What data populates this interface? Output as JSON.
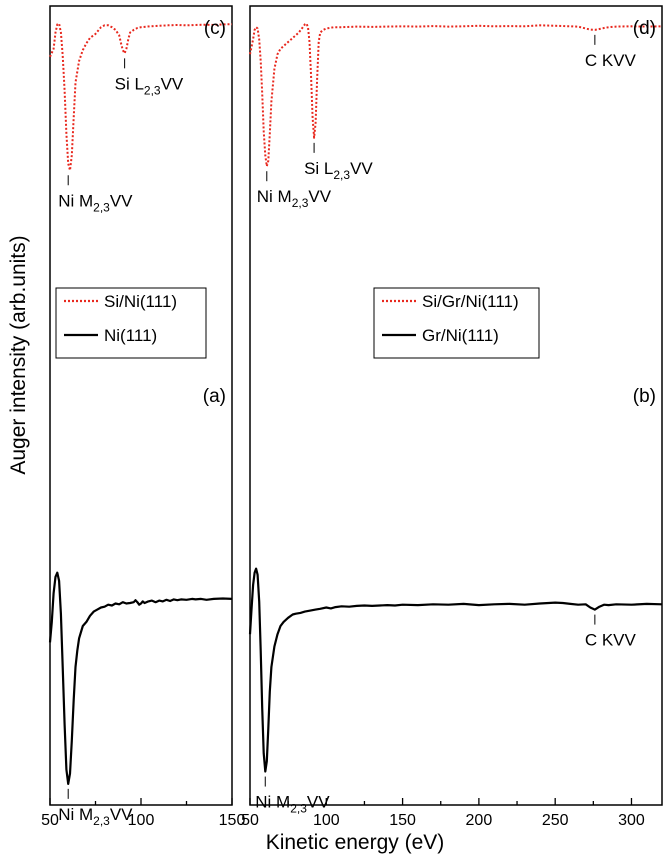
{
  "figure": {
    "xlabel": "Kinetic energy (eV)",
    "ylabel": "Auger intensity (arb.units)"
  },
  "chart_data": [
    {
      "type": "line",
      "panels": [
        "(c)",
        "(a)"
      ],
      "xlim": [
        50,
        150
      ],
      "x_ticks": [
        50,
        100,
        150
      ],
      "x_tick_labels": [
        "50",
        "100",
        "150"
      ],
      "y_ticks": "none",
      "legend": {
        "placement": "center-left"
      },
      "series": [
        {
          "name": "Si/Ni(111)",
          "panel": "(c)",
          "color": "#e8281e",
          "style": "dotted",
          "x": [
            50,
            52,
            53,
            54,
            55,
            56,
            57,
            58,
            59,
            60,
            61,
            62,
            63,
            64,
            66,
            68,
            70,
            72,
            75,
            78,
            80,
            82,
            84,
            86,
            88,
            89,
            90,
            91,
            92,
            93,
            94,
            96,
            98,
            100,
            105,
            110,
            115,
            120,
            125,
            130,
            135,
            140,
            145,
            150
          ],
          "y": [
            0.845,
            0.875,
            0.935,
            0.965,
            0.968,
            0.935,
            0.85,
            0.72,
            0.56,
            0.45,
            0.425,
            0.48,
            0.62,
            0.75,
            0.83,
            0.87,
            0.895,
            0.915,
            0.93,
            0.955,
            0.962,
            0.962,
            0.955,
            0.945,
            0.925,
            0.895,
            0.87,
            0.858,
            0.875,
            0.91,
            0.935,
            0.945,
            0.952,
            0.955,
            0.958,
            0.96,
            0.962,
            0.963,
            0.962,
            0.963,
            0.964,
            0.963,
            0.965,
            0.966
          ]
        },
        {
          "name": "Ni(111)",
          "panel": "(a)",
          "color": "#000000",
          "style": "solid",
          "x": [
            50,
            51,
            52,
            53,
            54,
            55,
            56,
            57,
            58,
            59,
            60,
            61,
            62,
            63,
            64,
            65,
            66,
            68,
            70,
            72,
            74,
            76,
            78,
            80,
            82,
            84,
            86,
            88,
            90,
            92,
            94,
            96,
            97,
            98,
            99,
            100,
            101,
            102,
            104,
            106,
            108,
            110,
            112,
            114,
            116,
            118,
            120,
            122,
            125,
            128,
            130,
            133,
            136,
            140,
            145,
            150
          ],
          "y": [
            0.36,
            0.41,
            0.48,
            0.52,
            0.53,
            0.51,
            0.43,
            0.3,
            0.16,
            0.05,
            0.015,
            0.04,
            0.12,
            0.22,
            0.3,
            0.34,
            0.37,
            0.4,
            0.41,
            0.425,
            0.435,
            0.44,
            0.445,
            0.447,
            0.452,
            0.45,
            0.455,
            0.453,
            0.458,
            0.455,
            0.456,
            0.458,
            0.463,
            0.458,
            0.452,
            0.455,
            0.46,
            0.456,
            0.46,
            0.462,
            0.458,
            0.462,
            0.46,
            0.464,
            0.461,
            0.465,
            0.463,
            0.465,
            0.464,
            0.466,
            0.465,
            0.466,
            0.464,
            0.466,
            0.467,
            0.466
          ]
        }
      ],
      "annotations": [
        {
          "panel": "(c)",
          "base": "Si L",
          "sub": "2,3",
          "suffix": "VV",
          "x": 91,
          "y": 0.858,
          "pos": "below"
        },
        {
          "panel": "(c)",
          "base": "Ni M",
          "sub": "2,3",
          "suffix": "VV",
          "x": 60,
          "y": 0.425,
          "pos": "below"
        },
        {
          "panel": "(a)",
          "base": "Ni M",
          "sub": "2,3",
          "suffix": "VV",
          "x": 60,
          "y": 0.015,
          "pos": "below"
        }
      ]
    },
    {
      "type": "line",
      "panels": [
        "(d)",
        "(b)"
      ],
      "xlim": [
        50,
        320
      ],
      "x_ticks": [
        50,
        100,
        150,
        200,
        250,
        300
      ],
      "x_tick_labels": [
        "50",
        "100",
        "150",
        "200",
        "250",
        "300"
      ],
      "y_ticks": "none",
      "legend": {
        "placement": "center-left"
      },
      "series": [
        {
          "name": "Si/Gr/Ni(111)",
          "panel": "(d)",
          "color": "#e8281e",
          "style": "dotted",
          "x": [
            50,
            52,
            53,
            54,
            55,
            56,
            57,
            58,
            59,
            60,
            61,
            62,
            63,
            64,
            66,
            68,
            70,
            72,
            74,
            76,
            78,
            80,
            82,
            84,
            86,
            87,
            88,
            89,
            90,
            91,
            92,
            93,
            94,
            95,
            96,
            98,
            100,
            105,
            110,
            120,
            130,
            140,
            150,
            160,
            170,
            180,
            190,
            200,
            210,
            220,
            230,
            240,
            250,
            260,
            265,
            270,
            273,
            276,
            279,
            282,
            285,
            290,
            300,
            310,
            320
          ],
          "y": [
            0.855,
            0.91,
            0.945,
            0.955,
            0.95,
            0.91,
            0.83,
            0.71,
            0.57,
            0.48,
            0.44,
            0.46,
            0.56,
            0.68,
            0.8,
            0.855,
            0.875,
            0.885,
            0.895,
            0.905,
            0.915,
            0.925,
            0.935,
            0.95,
            0.965,
            0.968,
            0.955,
            0.9,
            0.78,
            0.62,
            0.545,
            0.6,
            0.76,
            0.9,
            0.935,
            0.945,
            0.95,
            0.955,
            0.955,
            0.957,
            0.956,
            0.957,
            0.958,
            0.957,
            0.959,
            0.957,
            0.958,
            0.96,
            0.958,
            0.959,
            0.958,
            0.962,
            0.96,
            0.958,
            0.957,
            0.95,
            0.946,
            0.945,
            0.948,
            0.952,
            0.955,
            0.957,
            0.958,
            0.957,
            0.958
          ]
        },
        {
          "name": "Gr/Ni(111)",
          "panel": "(b)",
          "color": "#000000",
          "style": "solid",
          "x": [
            50,
            51,
            52,
            53,
            54,
            55,
            56,
            57,
            58,
            59,
            60,
            61,
            62,
            63,
            64,
            66,
            68,
            70,
            72,
            75,
            78,
            80,
            83,
            86,
            90,
            93,
            96,
            100,
            103,
            106,
            110,
            115,
            120,
            125,
            130,
            135,
            140,
            145,
            150,
            160,
            170,
            180,
            190,
            200,
            210,
            220,
            230,
            240,
            250,
            255,
            260,
            265,
            270,
            273,
            276,
            279,
            282,
            285,
            290,
            300,
            310,
            320
          ],
          "y": [
            0.38,
            0.44,
            0.5,
            0.53,
            0.54,
            0.525,
            0.46,
            0.34,
            0.2,
            0.09,
            0.045,
            0.07,
            0.15,
            0.24,
            0.3,
            0.35,
            0.38,
            0.4,
            0.41,
            0.42,
            0.428,
            0.43,
            0.432,
            0.435,
            0.438,
            0.44,
            0.442,
            0.445,
            0.443,
            0.446,
            0.448,
            0.447,
            0.449,
            0.45,
            0.449,
            0.45,
            0.451,
            0.45,
            0.452,
            0.451,
            0.453,
            0.452,
            0.454,
            0.451,
            0.453,
            0.454,
            0.452,
            0.455,
            0.457,
            0.456,
            0.454,
            0.452,
            0.453,
            0.445,
            0.44,
            0.447,
            0.452,
            0.451,
            0.453,
            0.452,
            0.454,
            0.453
          ]
        }
      ],
      "annotations": [
        {
          "panel": "(d)",
          "base": "Si L",
          "sub": "2,3",
          "suffix": "VV",
          "x": 92,
          "y": 0.545,
          "pos": "below"
        },
        {
          "panel": "(d)",
          "base": "Ni M",
          "sub": "2,3",
          "suffix": "VV",
          "x": 61,
          "y": 0.44,
          "pos": "below"
        },
        {
          "panel": "(d)",
          "base": "C KVV",
          "sub": "",
          "suffix": "",
          "x": 276,
          "y": 0.945,
          "pos": "below"
        },
        {
          "panel": "(b)",
          "base": "Ni M",
          "sub": "2,3",
          "suffix": "VV",
          "x": 60,
          "y": 0.045,
          "pos": "below"
        },
        {
          "panel": "(b)",
          "base": "C KVV",
          "sub": "",
          "suffix": "",
          "x": 276,
          "y": 0.44,
          "pos": "below"
        }
      ]
    }
  ]
}
